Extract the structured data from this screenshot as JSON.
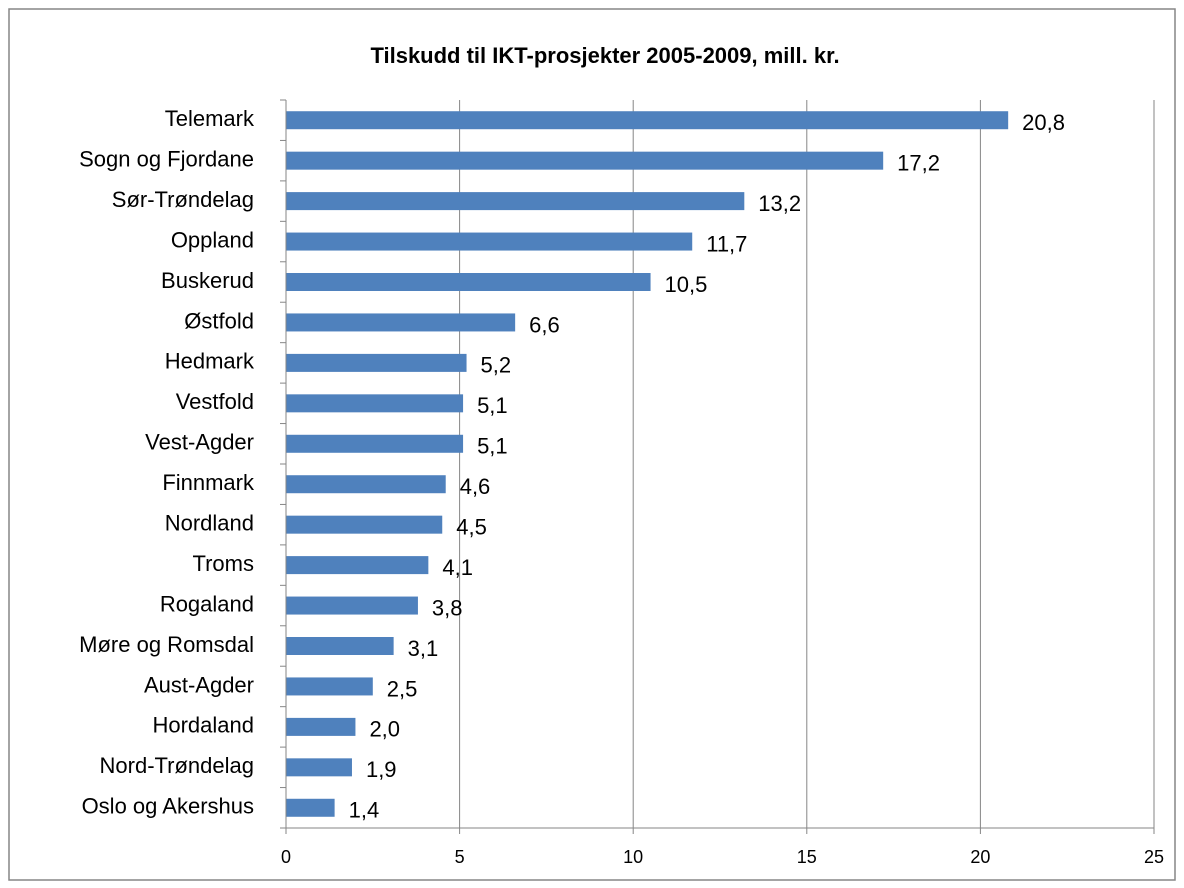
{
  "chart_data": {
    "type": "bar",
    "orientation": "horizontal",
    "title": "Tilskudd til IKT-prosjekter 2005-2009, mill. kr.",
    "categories": [
      "Telemark",
      "Sogn og Fjordane",
      "Sør-Trøndelag",
      "Oppland",
      "Buskerud",
      "Østfold",
      "Hedmark",
      "Vestfold",
      "Vest-Agder",
      "Finnmark",
      "Nordland",
      "Troms",
      "Rogaland",
      "Møre og Romsdal",
      "Aust-Agder",
      "Hordaland",
      "Nord-Trøndelag",
      "Oslo og Akershus"
    ],
    "values": [
      20.8,
      17.2,
      13.2,
      11.7,
      10.5,
      6.6,
      5.2,
      5.1,
      5.1,
      4.6,
      4.5,
      4.1,
      3.8,
      3.1,
      2.5,
      2.0,
      1.9,
      1.4
    ],
    "value_labels": [
      "20,8",
      "17,2",
      "13,2",
      "11,7",
      "10,5",
      "6,6",
      "5,2",
      "5,1",
      "5,1",
      "4,6",
      "4,5",
      "4,1",
      "3,8",
      "3,1",
      "2,5",
      "2,0",
      "1,9",
      "1,4"
    ],
    "color": "#4f81bd",
    "xlim": [
      0,
      25
    ],
    "xticks": [
      0,
      5,
      10,
      15,
      20,
      25
    ],
    "grid": true
  }
}
